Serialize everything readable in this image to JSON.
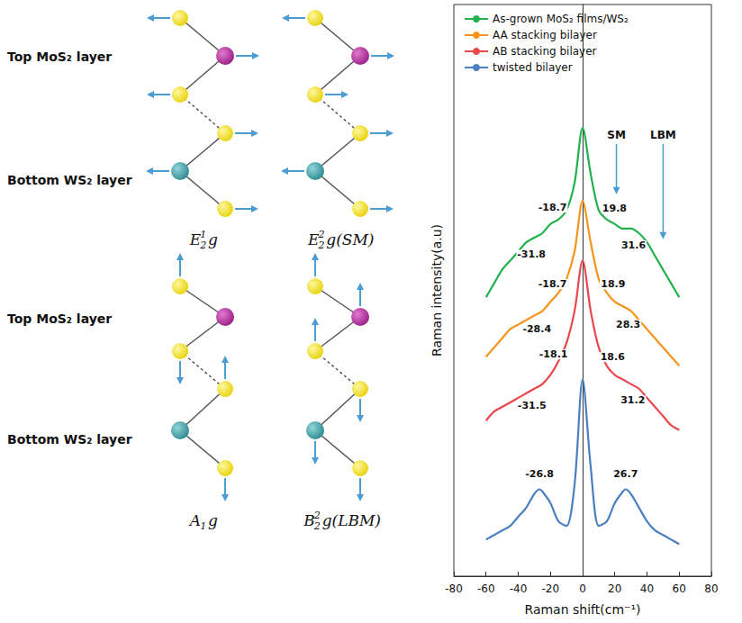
{
  "chart_data": {
    "type": "line",
    "x_label": "Raman shift(cm⁻¹)",
    "y_label": "Raman intensity(a.u)",
    "xlim": [
      -80,
      80
    ],
    "xticks": [
      -80,
      -60,
      -40,
      -20,
      0,
      20,
      40,
      60,
      80
    ],
    "ylim": [
      0,
      125
    ],
    "yticks": [],
    "tick_labels": "x",
    "grid": false,
    "legend": "top-left",
    "series": [
      {
        "name": "As-grown MoS₂ films/WS₂",
        "color": "#22b14c",
        "x": [
          -60,
          -55,
          -50,
          -45,
          -40,
          -35,
          -30,
          -25,
          -20,
          -15,
          -10,
          -5,
          0,
          5,
          10,
          15,
          20,
          25,
          30,
          35,
          40,
          45,
          50,
          55,
          60
        ],
        "values": [
          61,
          64,
          67,
          69,
          71,
          73,
          74,
          75,
          77,
          78,
          80,
          86,
          98,
          88,
          80,
          78,
          77,
          76,
          76,
          75,
          73,
          70,
          67,
          64,
          61
        ],
        "peaks": [
          -31.8,
          -18.7,
          19.8,
          31.6
        ]
      },
      {
        "name": "AA stacking bilayer",
        "color": "#f7941d",
        "x": [
          -60,
          -55,
          -50,
          -45,
          -40,
          -35,
          -30,
          -25,
          -20,
          -15,
          -10,
          -5,
          0,
          5,
          10,
          15,
          20,
          25,
          30,
          35,
          40,
          45,
          50,
          55,
          60
        ],
        "values": [
          48,
          50,
          52,
          54,
          55,
          56,
          57,
          58,
          60,
          62,
          65,
          71,
          82,
          73,
          65,
          62,
          60,
          59,
          58,
          56,
          54,
          52,
          50,
          48,
          46
        ],
        "peaks": [
          -28.4,
          -18.7,
          18.9,
          28.3
        ]
      },
      {
        "name": "AB stacking bilayer",
        "color": "#e8474c",
        "x": [
          -60,
          -55,
          -50,
          -45,
          -40,
          -35,
          -30,
          -25,
          -20,
          -15,
          -10,
          -5,
          0,
          5,
          10,
          15,
          20,
          25,
          30,
          35,
          40,
          45,
          50,
          55,
          60
        ],
        "values": [
          34,
          36,
          37,
          38,
          39,
          40,
          41,
          42,
          44,
          47,
          51,
          58,
          69,
          58,
          50,
          46,
          44,
          43,
          42,
          41,
          39,
          37,
          35,
          33,
          32
        ],
        "peaks": [
          -31.5,
          -18.1,
          18.6,
          31.2
        ]
      },
      {
        "name": "twisted bilayer",
        "color": "#4a7fc1",
        "x": [
          -60,
          -55,
          -50,
          -45,
          -40,
          -35,
          -30,
          -26.8,
          -25,
          -20,
          -15,
          -10,
          -5,
          0,
          5,
          10,
          15,
          20,
          25,
          26.7,
          30,
          35,
          40,
          45,
          50,
          55,
          60
        ],
        "values": [
          8,
          9,
          10,
          11,
          13,
          15,
          18,
          19,
          18.5,
          16,
          12,
          11,
          20,
          43,
          24,
          11,
          12,
          16,
          18.5,
          19,
          18,
          15,
          12,
          10,
          9,
          8,
          7
        ],
        "peaks": [
          -26.8,
          26.7
        ]
      }
    ],
    "annotations": [
      {
        "text": "SM",
        "x": 21
      },
      {
        "text": "LBM",
        "x": 50
      }
    ]
  },
  "diagram": {
    "rows": [
      {
        "top_layer": "Top MoS₂ layer",
        "bottom_layer": "Bottom WS₂ layer",
        "modes": [
          {
            "symbol": "E",
            "superscript": "1",
            "subscript": "2",
            "suffix": "g"
          },
          {
            "symbol": "E",
            "superscript": "2",
            "subscript": "2",
            "suffix": "g(SM)"
          }
        ]
      },
      {
        "top_layer": "Top MoS₂ layer",
        "bottom_layer": "Bottom WS₂ layer",
        "modes": [
          {
            "symbol": "A",
            "subscript": "1",
            "suffix": "g"
          },
          {
            "symbol": "B",
            "superscript": "2",
            "subscript": "2",
            "suffix": "g(LBM)"
          }
        ]
      }
    ]
  }
}
